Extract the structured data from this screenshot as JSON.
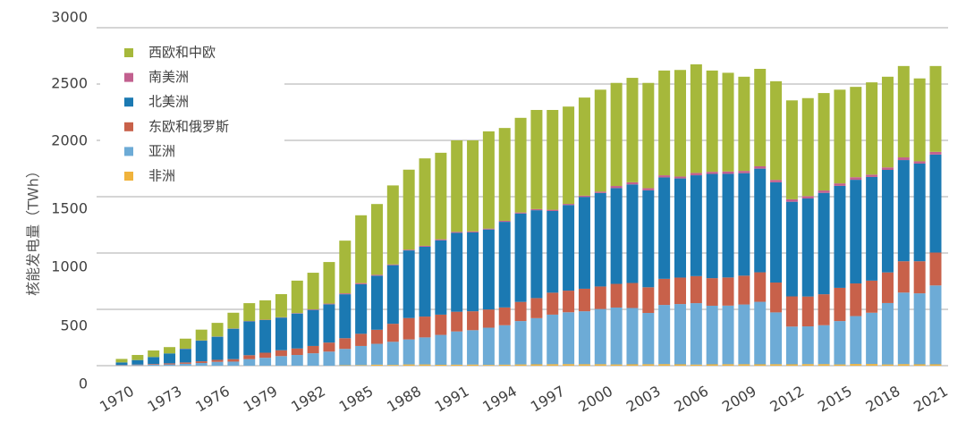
{
  "chart_data": {
    "type": "bar",
    "stacked": true,
    "ylabel": "核能发电量（TWh）",
    "ylim": [
      0,
      3000
    ],
    "yticks": [
      0,
      500,
      1000,
      1500,
      2000,
      2500,
      3000
    ],
    "grid": true,
    "legend_position": "top-left",
    "categories": [
      1970,
      1971,
      1972,
      1973,
      1974,
      1975,
      1976,
      1977,
      1978,
      1979,
      1980,
      1981,
      1982,
      1983,
      1984,
      1985,
      1986,
      1987,
      1988,
      1989,
      1990,
      1991,
      1992,
      1993,
      1994,
      1995,
      1996,
      1997,
      1998,
      1999,
      2000,
      2001,
      2002,
      2003,
      2004,
      2005,
      2006,
      2007,
      2008,
      2009,
      2010,
      2011,
      2012,
      2013,
      2014,
      2015,
      2016,
      2017,
      2018,
      2019,
      2020,
      2021
    ],
    "xtick_labels": [
      "1970",
      "1973",
      "1976",
      "1979",
      "1982",
      "1985",
      "1988",
      "1991",
      "1994",
      "1997",
      "2000",
      "2003",
      "2006",
      "2009",
      "2012",
      "2015",
      "2018",
      "2021"
    ],
    "series": [
      {
        "name": "西欧和中欧",
        "color": "#a6b83b",
        "values": [
          31,
          45,
          58,
          56,
          89,
          96,
          121,
          140,
          159,
          172,
          205,
          288,
          325,
          369,
          468,
          602,
          628,
          701,
          710,
          776,
          768,
          812,
          808,
          863,
          824,
          840,
          880,
          886,
          864,
          871,
          905,
          915,
          927,
          934,
          930,
          946,
          964,
          899,
          876,
          836,
          865,
          876,
          878,
          870,
          865,
          832,
          802,
          819,
          805,
          811,
          736,
          762
        ]
      },
      {
        "name": "南美洲",
        "color": "#c2608f",
        "values": [
          0,
          0,
          0,
          0,
          2,
          2,
          2,
          2,
          3,
          3,
          3,
          4,
          5,
          6,
          8,
          10,
          8,
          7,
          7,
          8,
          9,
          9,
          9,
          8,
          9,
          9,
          10,
          11,
          10,
          11,
          12,
          19,
          19,
          20,
          19,
          17,
          21,
          19,
          21,
          20,
          21,
          21,
          22,
          21,
          21,
          22,
          23,
          21,
          22,
          24,
          20,
          24
        ]
      },
      {
        "name": "北美洲",
        "color": "#1b79b2",
        "values": [
          22,
          40,
          62,
          88,
          120,
          183,
          205,
          270,
          300,
          290,
          290,
          310,
          320,
          340,
          390,
          440,
          480,
          520,
          600,
          620,
          660,
          700,
          700,
          710,
          760,
          785,
          780,
          725,
          760,
          815,
          830,
          850,
          875,
          860,
          900,
          880,
          895,
          925,
          920,
          910,
          920,
          890,
          840,
          870,
          900,
          905,
          920,
          920,
          910,
          898,
          867,
          870
        ]
      },
      {
        "name": "东欧和俄罗斯",
        "color": "#c8614a",
        "values": [
          3,
          4,
          6,
          10,
          12,
          15,
          18,
          22,
          35,
          45,
          52,
          58,
          65,
          80,
          95,
          108,
          125,
          160,
          190,
          185,
          180,
          175,
          168,
          162,
          158,
          170,
          178,
          195,
          192,
          200,
          200,
          210,
          222,
          228,
          232,
          235,
          240,
          245,
          250,
          256,
          262,
          265,
          268,
          265,
          275,
          295,
          290,
          285,
          272,
          278,
          285,
          292
        ]
      },
      {
        "name": "亚洲",
        "color": "#6dabd6",
        "values": [
          4,
          6,
          9,
          11,
          17,
          24,
          34,
          36,
          58,
          70,
          85,
          95,
          110,
          125,
          145,
          170,
          185,
          205,
          222,
          240,
          265,
          295,
          305,
          330,
          350,
          385,
          410,
          440,
          460,
          470,
          490,
          505,
          500,
          455,
          525,
          535,
          545,
          520,
          520,
          530,
          555,
          460,
          335,
          335,
          345,
          385,
          425,
          455,
          545,
          635,
          630,
          700
        ]
      },
      {
        "name": "非洲",
        "color": "#f0b33c",
        "values": [
          0,
          0,
          0,
          0,
          0,
          0,
          0,
          0,
          0,
          0,
          0,
          0,
          0,
          0,
          4,
          5,
          9,
          7,
          11,
          11,
          8,
          9,
          10,
          7,
          9,
          11,
          12,
          13,
          14,
          13,
          13,
          11,
          12,
          13,
          14,
          12,
          10,
          12,
          13,
          13,
          12,
          13,
          12,
          14,
          14,
          11,
          15,
          15,
          11,
          14,
          12,
          12
        ]
      }
    ]
  }
}
